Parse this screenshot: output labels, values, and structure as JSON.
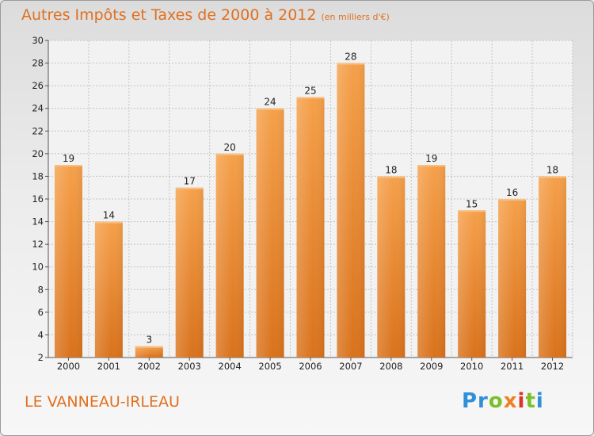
{
  "header": {
    "title": "Autres Impôts et Taxes de 2000 à 2012",
    "unit": "(en milliers d'€)"
  },
  "footer": {
    "location": "LE VANNEAU-IRLEAU",
    "logo_text": "Proxiti"
  },
  "colors": {
    "bar_top": "#f5a04a",
    "bar_bottom": "#d9721c",
    "text_accent": "#e07020"
  },
  "chart_data": {
    "type": "bar",
    "categories": [
      "2000",
      "2001",
      "2002",
      "2003",
      "2004",
      "2005",
      "2006",
      "2007",
      "2008",
      "2009",
      "2010",
      "2011",
      "2012"
    ],
    "values": [
      19,
      14,
      3,
      17,
      20,
      24,
      25,
      28,
      18,
      19,
      15,
      16,
      18
    ],
    "title": "Autres Impôts et Taxes de 2000 à 2012",
    "xlabel": "",
    "ylabel": "",
    "ylim": [
      2,
      30
    ],
    "yticks": [
      2,
      4,
      6,
      8,
      10,
      12,
      14,
      16,
      18,
      20,
      22,
      24,
      26,
      28,
      30
    ],
    "grid": true
  }
}
